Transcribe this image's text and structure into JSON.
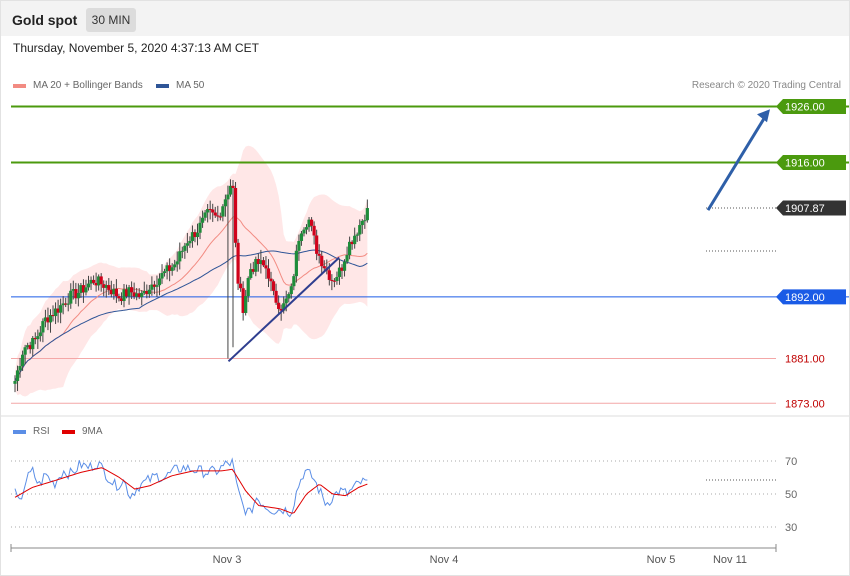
{
  "header": {
    "title": "Gold spot",
    "timeframe": "30 MIN",
    "timestamp": "Thursday, November 5, 2020 4:37:13 AM CET"
  },
  "legend": {
    "ma20": "MA 20 + Bollinger Bands",
    "ma50": "MA 50",
    "rsi": "RSI",
    "rsi_ma": "9MA",
    "copyright": "Research © 2020 Trading Central"
  },
  "colors": {
    "ma20": "#f28b82",
    "ma50": "#2f5597",
    "band_fill": "#ffe3e3",
    "bull": "#1e8c3a",
    "bear": "#d0021b",
    "resistance": "#4b9a0e",
    "pivot": "#1a5be6",
    "support": "#f4a7a7",
    "last_price": "#333333",
    "rsi": "#5b8ee6",
    "rsi_ma": "#e00000"
  },
  "chart_data": {
    "type": "candlestick",
    "title": "Gold spot",
    "timeframe": "30 MIN",
    "ylim": [
      1868,
      1931
    ],
    "x_ticks": [
      "Nov 3",
      "Nov 4",
      "Nov 5",
      "Nov 11"
    ],
    "levels": [
      {
        "label": "1926.00",
        "value": 1926.0,
        "kind": "resistance"
      },
      {
        "label": "1916.00",
        "value": 1916.0,
        "kind": "resistance"
      },
      {
        "label": "1907.87",
        "value": 1907.87,
        "kind": "last"
      },
      {
        "label": "1892.00",
        "value": 1892.0,
        "kind": "pivot"
      },
      {
        "label": "1881.00",
        "value": 1881.0,
        "kind": "support"
      },
      {
        "label": "1873.00",
        "value": 1873.0,
        "kind": "support"
      }
    ],
    "trendline": {
      "from": [
        1,
        1880.5
      ],
      "to": [
        1.5,
        1896.0
      ]
    },
    "projection_arrow": {
      "from": 1907.5,
      "to": 1925.5
    },
    "price_path": [
      {
        "t": 0.0,
        "p": 1877
      },
      {
        "t": 0.04,
        "p": 1883
      },
      {
        "t": 0.09,
        "p": 1884
      },
      {
        "t": 0.14,
        "p": 1888
      },
      {
        "t": 0.2,
        "p": 1890
      },
      {
        "t": 0.25,
        "p": 1892
      },
      {
        "t": 0.3,
        "p": 1893
      },
      {
        "t": 0.36,
        "p": 1895
      },
      {
        "t": 0.42,
        "p": 1894
      },
      {
        "t": 0.48,
        "p": 1892
      },
      {
        "t": 0.53,
        "p": 1893
      },
      {
        "t": 0.58,
        "p": 1892
      },
      {
        "t": 0.62,
        "p": 1894
      },
      {
        "t": 0.68,
        "p": 1896
      },
      {
        "t": 0.74,
        "p": 1898
      },
      {
        "t": 0.79,
        "p": 1902
      },
      {
        "t": 0.84,
        "p": 1904
      },
      {
        "t": 0.89,
        "p": 1907
      },
      {
        "t": 0.93,
        "p": 1906
      },
      {
        "t": 0.97,
        "p": 1910
      },
      {
        "t": 1.0,
        "p": 1913
      },
      {
        "t": 1.02,
        "p": 1896
      },
      {
        "t": 1.05,
        "p": 1890
      },
      {
        "t": 1.08,
        "p": 1897
      },
      {
        "t": 1.12,
        "p": 1898
      },
      {
        "t": 1.16,
        "p": 1897
      },
      {
        "t": 1.19,
        "p": 1892
      },
      {
        "t": 1.23,
        "p": 1890
      },
      {
        "t": 1.27,
        "p": 1893
      },
      {
        "t": 1.31,
        "p": 1904
      },
      {
        "t": 1.35,
        "p": 1906
      },
      {
        "t": 1.39,
        "p": 1900
      },
      {
        "t": 1.43,
        "p": 1897
      },
      {
        "t": 1.46,
        "p": 1895
      },
      {
        "t": 1.5,
        "p": 1897
      },
      {
        "t": 1.53,
        "p": 1901
      },
      {
        "t": 1.56,
        "p": 1903
      },
      {
        "t": 1.6,
        "p": 1906
      },
      {
        "t": 1.62,
        "p": 1907.87
      }
    ],
    "rsi": {
      "ylim": [
        20,
        80
      ],
      "ticks": [
        70,
        50,
        30
      ],
      "rsi_path": [
        {
          "t": 0.0,
          "p": 50
        },
        {
          "t": 0.02,
          "p": 44
        },
        {
          "t": 0.05,
          "p": 58
        },
        {
          "t": 0.08,
          "p": 64
        },
        {
          "t": 0.11,
          "p": 55
        },
        {
          "t": 0.14,
          "p": 62
        },
        {
          "t": 0.18,
          "p": 56
        },
        {
          "t": 0.22,
          "p": 64
        },
        {
          "t": 0.26,
          "p": 62
        },
        {
          "t": 0.3,
          "p": 68
        },
        {
          "t": 0.34,
          "p": 66
        },
        {
          "t": 0.38,
          "p": 69
        },
        {
          "t": 0.42,
          "p": 62
        },
        {
          "t": 0.46,
          "p": 55
        },
        {
          "t": 0.5,
          "p": 58
        },
        {
          "t": 0.53,
          "p": 49
        },
        {
          "t": 0.57,
          "p": 55
        },
        {
          "t": 0.61,
          "p": 58
        },
        {
          "t": 0.65,
          "p": 61
        },
        {
          "t": 0.69,
          "p": 60
        },
        {
          "t": 0.73,
          "p": 64
        },
        {
          "t": 0.77,
          "p": 66
        },
        {
          "t": 0.81,
          "p": 65
        },
        {
          "t": 0.85,
          "p": 64
        },
        {
          "t": 0.89,
          "p": 63
        },
        {
          "t": 0.93,
          "p": 64
        },
        {
          "t": 0.97,
          "p": 68
        },
        {
          "t": 1.0,
          "p": 69
        },
        {
          "t": 1.02,
          "p": 54
        },
        {
          "t": 1.05,
          "p": 42
        },
        {
          "t": 1.08,
          "p": 38
        },
        {
          "t": 1.11,
          "p": 48
        },
        {
          "t": 1.15,
          "p": 43
        },
        {
          "t": 1.19,
          "p": 40
        },
        {
          "t": 1.23,
          "p": 41
        },
        {
          "t": 1.27,
          "p": 39
        },
        {
          "t": 1.3,
          "p": 54
        },
        {
          "t": 1.33,
          "p": 64
        },
        {
          "t": 1.37,
          "p": 60
        },
        {
          "t": 1.4,
          "p": 52
        },
        {
          "t": 1.43,
          "p": 44
        },
        {
          "t": 1.46,
          "p": 48
        },
        {
          "t": 1.49,
          "p": 52
        },
        {
          "t": 1.53,
          "p": 50
        },
        {
          "t": 1.56,
          "p": 54
        },
        {
          "t": 1.59,
          "p": 57
        },
        {
          "t": 1.62,
          "p": 57
        }
      ],
      "ma_path": [
        {
          "t": 0.0,
          "p": 48
        },
        {
          "t": 0.08,
          "p": 54
        },
        {
          "t": 0.18,
          "p": 58
        },
        {
          "t": 0.3,
          "p": 63
        },
        {
          "t": 0.4,
          "p": 66
        },
        {
          "t": 0.48,
          "p": 60
        },
        {
          "t": 0.55,
          "p": 53
        },
        {
          "t": 0.62,
          "p": 55
        },
        {
          "t": 0.72,
          "p": 61
        },
        {
          "t": 0.82,
          "p": 64
        },
        {
          "t": 0.95,
          "p": 64
        },
        {
          "t": 1.0,
          "p": 65
        },
        {
          "t": 1.06,
          "p": 52
        },
        {
          "t": 1.12,
          "p": 43
        },
        {
          "t": 1.22,
          "p": 41
        },
        {
          "t": 1.28,
          "p": 38
        },
        {
          "t": 1.34,
          "p": 50
        },
        {
          "t": 1.4,
          "p": 56
        },
        {
          "t": 1.46,
          "p": 50
        },
        {
          "t": 1.52,
          "p": 49
        },
        {
          "t": 1.58,
          "p": 54
        },
        {
          "t": 1.62,
          "p": 56
        }
      ]
    }
  }
}
